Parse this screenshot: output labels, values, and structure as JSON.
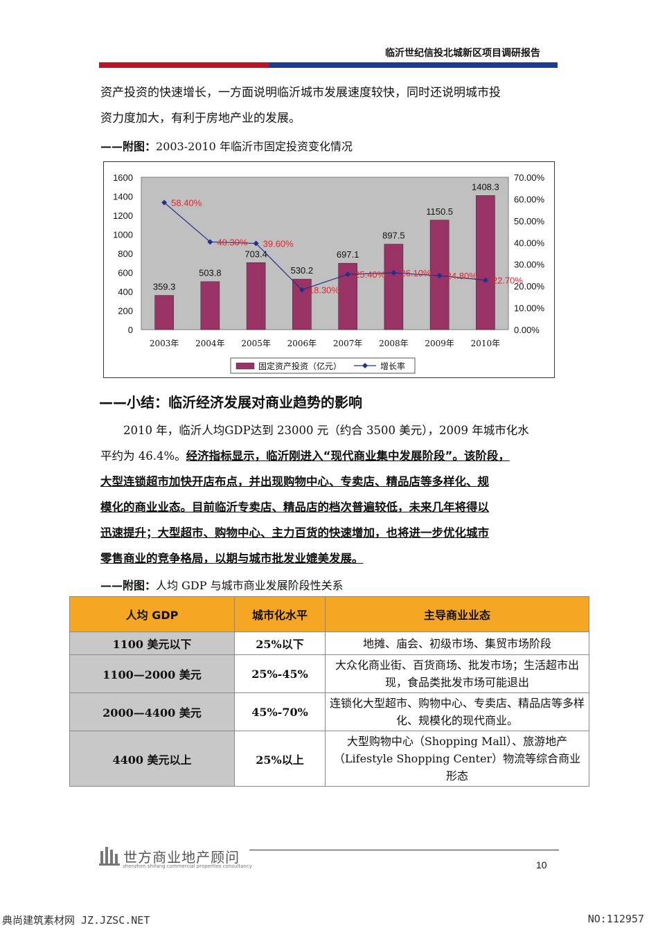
{
  "header": {
    "title": "临沂世纪信投北城新区项目调研报告"
  },
  "intro_lines": [
    "资产投资的快速增长，一方面说明临沂城市发展速度较快，同时还说明城市投",
    "资力度加大，有利于房地产业的发展。"
  ],
  "chart_caption": {
    "prefix": "——附图：",
    "text": "2003-2010 年临沂市固定投资变化情况"
  },
  "chart_data": {
    "type": "bar",
    "categories": [
      "2003年",
      "2004年",
      "2005年",
      "2006年",
      "2007年",
      "2008年",
      "2009年",
      "2010年"
    ],
    "series": [
      {
        "name": "固定资产投资（亿元）",
        "type": "bar",
        "values": [
          359.3,
          503.8,
          703.4,
          530.2,
          697.1,
          897.5,
          1150.5,
          1408.3
        ],
        "color": "#993366"
      },
      {
        "name": "增长率",
        "type": "line",
        "axis": "right",
        "values": [
          58.4,
          40.3,
          39.6,
          18.3,
          25.4,
          26.1,
          24.8,
          22.7
        ],
        "color": "#1f2f8a"
      }
    ],
    "bar_labels": [
      "359.3",
      "503.8",
      "703.4",
      "530.2",
      "697.1",
      "897.5",
      "1150.5",
      "1408.3"
    ],
    "line_labels": [
      "58.40%",
      "40.30%",
      "39.60%",
      "18.30%",
      "25.40%",
      "26.10%",
      "24.80%",
      "22.70%"
    ],
    "y_left": {
      "range": [
        0,
        1600
      ],
      "ticks": [
        "0",
        "200",
        "400",
        "600",
        "800",
        "1000",
        "1200",
        "1400",
        "1600"
      ]
    },
    "y_right": {
      "range": [
        0,
        70
      ],
      "ticks": [
        "0.00%",
        "10.00%",
        "20.00%",
        "30.00%",
        "40.00%",
        "50.00%",
        "60.00%",
        "70.00%"
      ]
    },
    "plot_background": "#c0c0c0",
    "line_label_color": "#e8202a",
    "legend_position": "bottom"
  },
  "section_title": "——小结：临沂经济发展对商业趋势的影响",
  "body": {
    "plain_lines": [
      "　　2010 年，临沂人均GDP达到 23000 元（约合 3500 美元），2009 年城市化水",
      "平约为 46.4%。"
    ],
    "bold_lines": [
      "经济指标显示，临沂刚进入“现代商业集中发展阶段”。该阶段，",
      "大型连锁超市加快开店布点，并出现购物中心、专卖店、精品店等多样化、规",
      "模化的商业业态。目前临沂专卖店、精品店的档次普遍较低，未来几年将得以",
      "迅速提升；大型超市、购物中心、主力百货的快速增加，也将进一步优化城市",
      "零售商业的竞争格局，以期与城市批发业媲美发展。"
    ]
  },
  "table_caption": {
    "prefix": "——附图：",
    "text": "人均 GDP 与城市商业发展阶段性关系"
  },
  "table": {
    "headers": [
      "人均 GDP",
      "城市化水平",
      "主导商业业态"
    ],
    "rows": [
      [
        "1100 美元以下",
        "25%以下",
        "地摊、庙会、初级市场、集贸市场阶段"
      ],
      [
        "1100—2000 美元",
        "25%-45%",
        "大众化商业街、百货商场、批发市场；生活超市出现，食品类批发市场可能退出"
      ],
      [
        "2000—4400 美元",
        "45%-70%",
        "连锁化大型超市、购物中心、专卖店、精品店等多样化、规模化的现代商业。"
      ],
      [
        "4400 美元以上",
        "25%以上",
        "大型购物中心（Shopping Mall）、旅游地产（Lifestyle Shopping Center）物流等综合商业形态"
      ]
    ],
    "header_color": "#f5a623"
  },
  "footer": {
    "logo_text": "世方商业地产顾问",
    "logo_sub": "shenzhen shifang commercial properties consultancy",
    "page_number": "10"
  },
  "watermark": {
    "left": "典尚建筑素材网 JZ.JZSC.NET",
    "right": "NO:112957"
  }
}
